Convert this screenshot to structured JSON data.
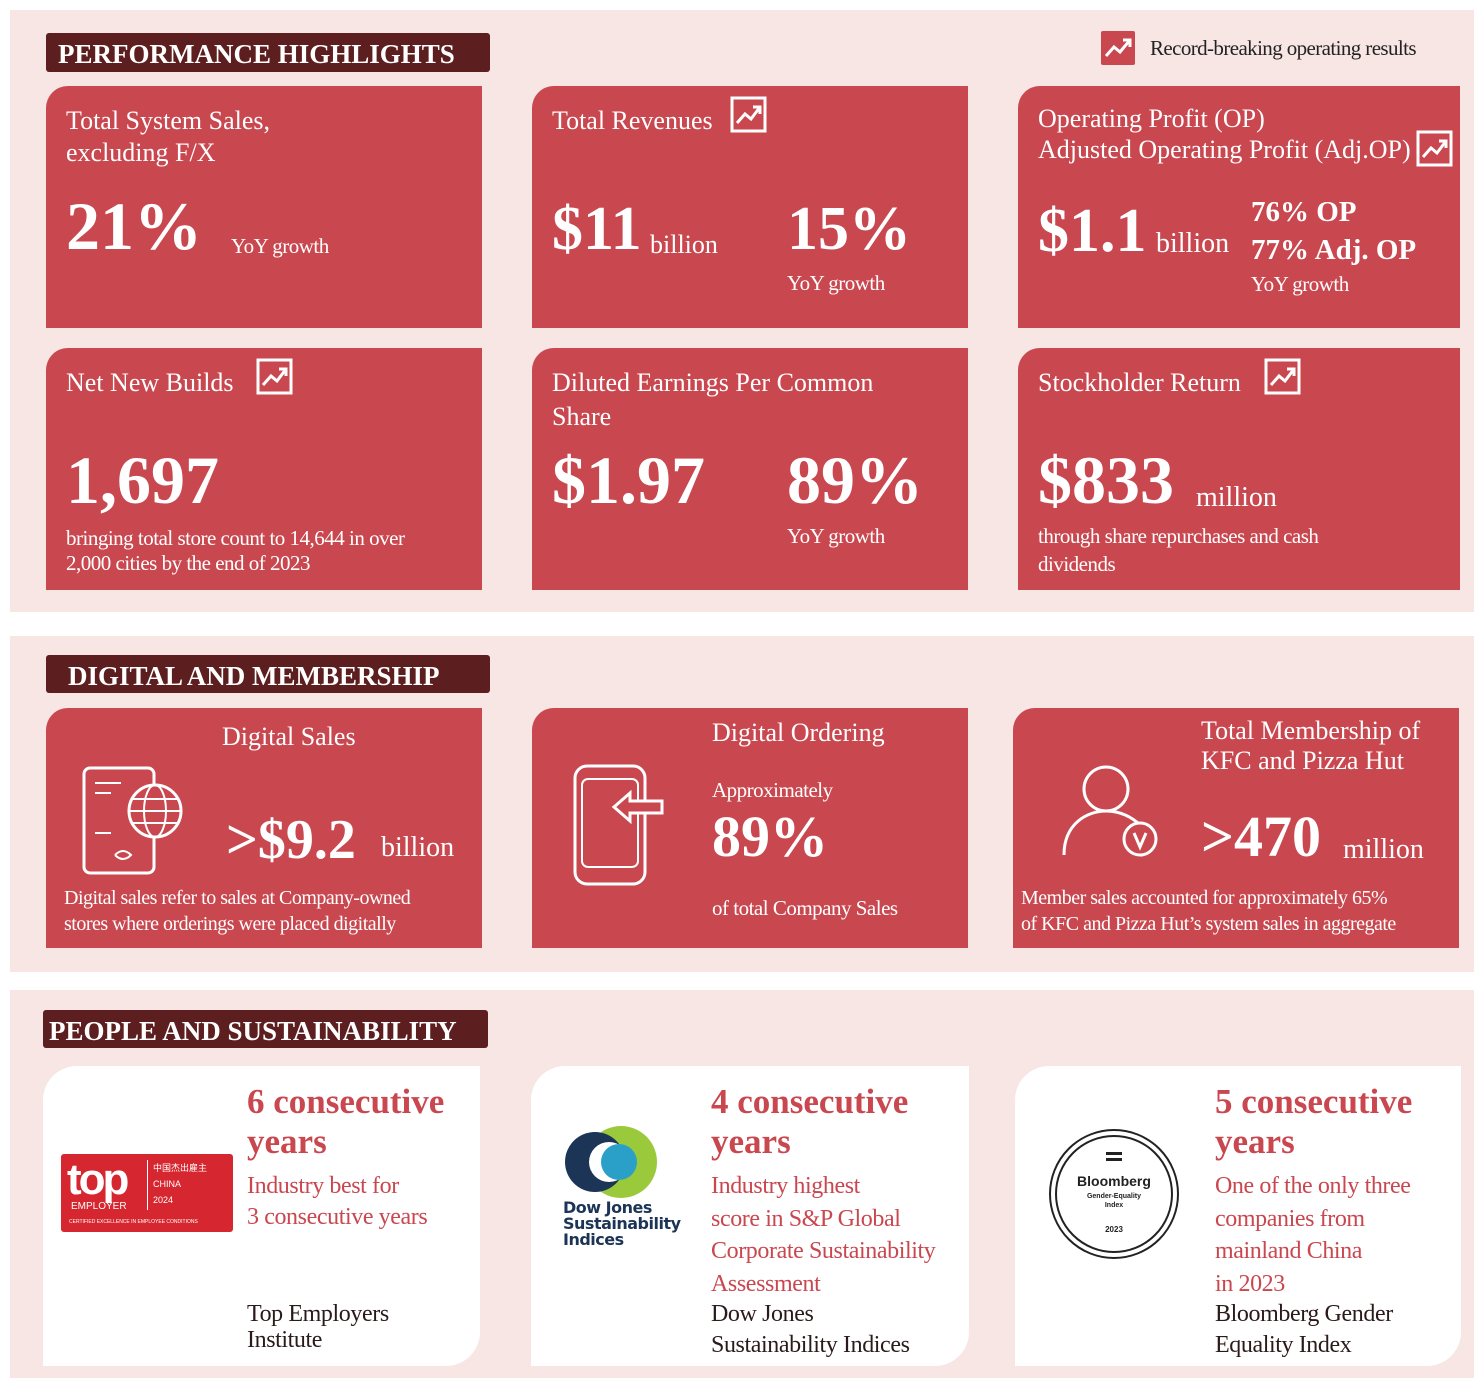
{
  "performance": {
    "title": "PERFORMANCE HIGHLIGHTS",
    "legend": "Record-breaking operating results",
    "cards": [
      {
        "label": [
          "Total System Sales,",
          "excluding F/X"
        ],
        "value": "21%",
        "note": "YoY growth"
      },
      {
        "label": "Total Revenues",
        "value": "$11",
        "unit": "billion",
        "growth": "15%",
        "note": "YoY growth"
      },
      {
        "label": [
          "Operating Profit (OP)",
          "Adjusted Operating Profit (Adj.OP)"
        ],
        "value": "$1.1",
        "unit": "billion",
        "growth": [
          "76% OP",
          "77% Adj. OP"
        ],
        "note": "YoY growth"
      },
      {
        "label": "Net New Builds",
        "value": "1,697",
        "note": [
          "bringing total store count to 14,644 in over",
          "2,000 cities by the end of 2023"
        ]
      },
      {
        "label": [
          "Diluted Earnings Per Common",
          "Share"
        ],
        "value": "$1.97",
        "growth": "89%",
        "note": "YoY growth"
      },
      {
        "label": "Stockholder Return",
        "value": "$833",
        "unit": "million",
        "note": [
          "through share repurchases and cash",
          "dividends"
        ]
      }
    ]
  },
  "digital": {
    "title": "DIGITAL AND MEMBERSHIP",
    "cards": [
      {
        "label": "Digital Sales",
        "value": ">$9.2",
        "unit": "billion",
        "note": [
          "Digital sales refer to sales at Company-owned",
          "stores where orderings were placed digitally"
        ]
      },
      {
        "label": "Digital Ordering",
        "prefix": "Approximately",
        "value": "89%",
        "note": "of total Company Sales"
      },
      {
        "label": [
          "Total Membership of",
          "KFC and Pizza Hut"
        ],
        "value": ">470",
        "unit": "million",
        "note": [
          "Member sales accounted for approximately 65%",
          "of KFC and  Pizza Hut’s system sales in aggregate"
        ]
      }
    ]
  },
  "people": {
    "title": "PEOPLE AND SUSTAINABILITY",
    "cards": [
      {
        "logo": [
          "top",
          "EMPLOYER",
          "中国杰出雇主",
          "CHINA",
          "2024",
          "CERTIFIED EXCELLENCE IN EMPLOYEE CONDITIONS"
        ],
        "heading": [
          "6 consecutive",
          "years"
        ],
        "desc": [
          "Industry best for",
          "3 consecutive years"
        ],
        "source": [
          "Top Employers",
          "Institute"
        ]
      },
      {
        "logo": [
          "Dow Jones",
          "Sustainability",
          "Indices"
        ],
        "heading": [
          "4 consecutive",
          "years"
        ],
        "desc": [
          "Industry highest",
          "score in S&P Global",
          "Corporate Sustainability",
          "Assessment"
        ],
        "source": [
          "Dow Jones",
          "Sustainability Indices"
        ]
      },
      {
        "logo": [
          "Bloomberg",
          "Gender-Equality",
          "Index",
          "2023"
        ],
        "heading": [
          "5 consecutive",
          "years"
        ],
        "desc": [
          "One of the only three",
          "companies from",
          "mainland China",
          "in 2023"
        ],
        "source": [
          "Bloomberg Gender",
          "Equality Index"
        ]
      }
    ]
  }
}
